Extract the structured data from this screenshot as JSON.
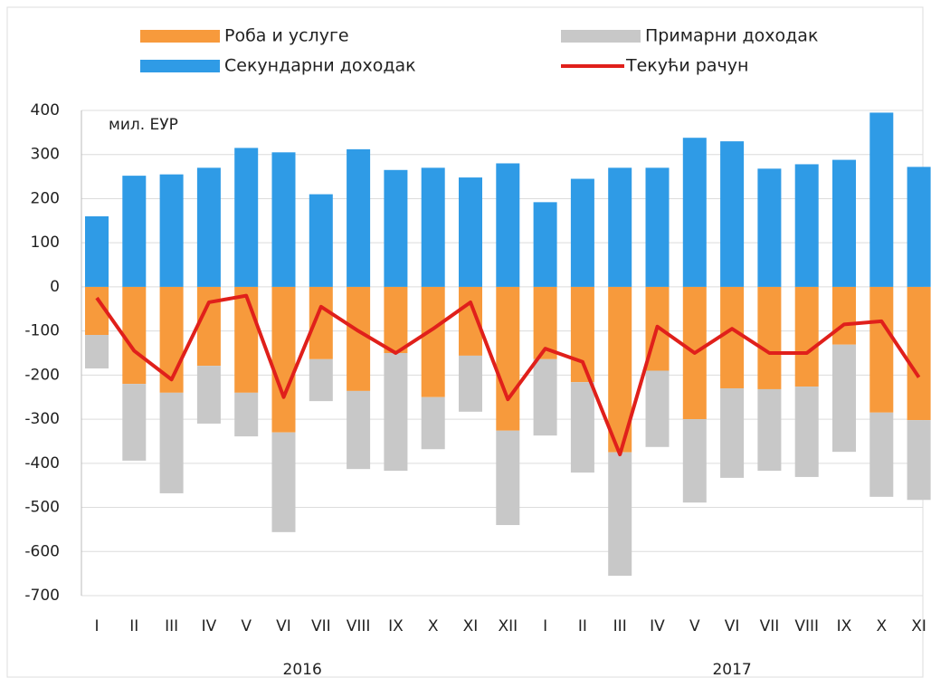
{
  "chart_data": {
    "type": "bar",
    "annotation": "мил. ЕУР",
    "categories": [
      "I",
      "II",
      "III",
      "IV",
      "V",
      "VI",
      "VII",
      "VIII",
      "IX",
      "X",
      "XI",
      "XII",
      "I",
      "II",
      "III",
      "IV",
      "V",
      "VI",
      "VII",
      "VIII",
      "IX",
      "X",
      "XI"
    ],
    "years": [
      "2016",
      "2017"
    ],
    "series": [
      {
        "name": "Роба и услуге",
        "color": "#f79a3c",
        "kind": "bar",
        "values": [
          -109,
          -220,
          -240,
          -179,
          -240,
          -330,
          -164,
          -236,
          -150,
          -250,
          -156,
          -326,
          -164,
          -216,
          -375,
          -190,
          -300,
          -230,
          -232,
          -226,
          -131,
          -285,
          -302
        ]
      },
      {
        "name": "Примарни доходак",
        "color": "#c8c8c8",
        "kind": "bar",
        "values": [
          -76,
          -174,
          -228,
          -131,
          -99,
          -226,
          -95,
          -177,
          -267,
          -118,
          -127,
          -214,
          -173,
          -205,
          -280,
          -173,
          -189,
          -203,
          -185,
          -205,
          -243,
          -191,
          -181
        ]
      },
      {
        "name": "Секундарни доходак",
        "color": "#2f9be6",
        "kind": "bar",
        "values": [
          160,
          252,
          255,
          270,
          315,
          305,
          210,
          312,
          265,
          270,
          248,
          280,
          192,
          245,
          270,
          270,
          338,
          330,
          268,
          278,
          288,
          395,
          272
        ]
      },
      {
        "name": "Текући рачун",
        "color": "#e0201b",
        "kind": "line",
        "values": [
          -25,
          -145,
          -210,
          -35,
          -20,
          -250,
          -45,
          -100,
          -150,
          -95,
          -35,
          -255,
          -140,
          -170,
          -380,
          -90,
          -150,
          -95,
          -150,
          -150,
          -85,
          -78,
          -205
        ]
      }
    ],
    "ylim": [
      -700,
      400
    ],
    "yticks": [
      -700,
      -600,
      -500,
      -400,
      -300,
      -200,
      -100,
      0,
      100,
      200,
      300,
      400
    ],
    "grid": true
  }
}
